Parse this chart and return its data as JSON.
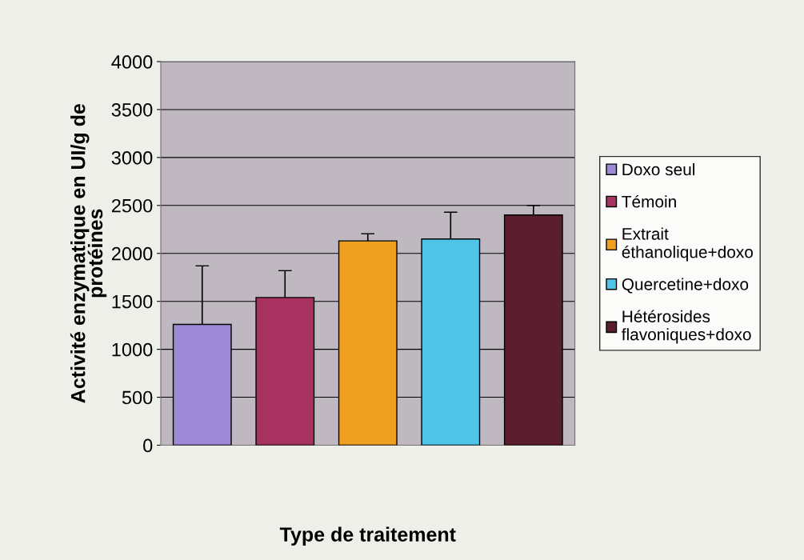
{
  "chart_data": {
    "type": "bar",
    "xlabel": "Type de traitement",
    "ylabel": "Activité enzymatique en UI/g de\nprotéines",
    "categories": [
      null,
      null,
      null,
      null,
      null
    ],
    "series": [
      {
        "name": "Doxo seul",
        "color": "#9c8ad6",
        "values": [
          1260,
          null,
          null,
          null,
          null
        ],
        "errors": [
          610,
          null,
          null,
          null,
          null
        ]
      },
      {
        "name": "Témoin",
        "color": "#a8325f",
        "values": [
          null,
          1540,
          null,
          null,
          null
        ],
        "errors": [
          null,
          280,
          null,
          null,
          null
        ]
      },
      {
        "name": "Extrait\néthanolique+doxo",
        "color": "#f0a020",
        "values": [
          null,
          null,
          2130,
          null,
          null
        ],
        "errors": [
          null,
          null,
          75,
          null,
          null
        ]
      },
      {
        "name": "Quercetine+doxo",
        "color": "#4fc3e8",
        "values": [
          null,
          null,
          null,
          2150,
          null
        ],
        "errors": [
          null,
          null,
          null,
          280,
          null
        ]
      },
      {
        "name": "Hétérosides\nflavoniques+doxo",
        "color": "#5a1e2e",
        "values": [
          null,
          null,
          null,
          null,
          2400
        ],
        "errors": [
          null,
          null,
          null,
          null,
          100
        ]
      }
    ],
    "ylim": [
      0,
      4000
    ],
    "yticks": [
      0,
      500,
      1000,
      1500,
      2000,
      2500,
      3000,
      3500,
      4000
    ],
    "grid": "y",
    "legend": "right"
  }
}
